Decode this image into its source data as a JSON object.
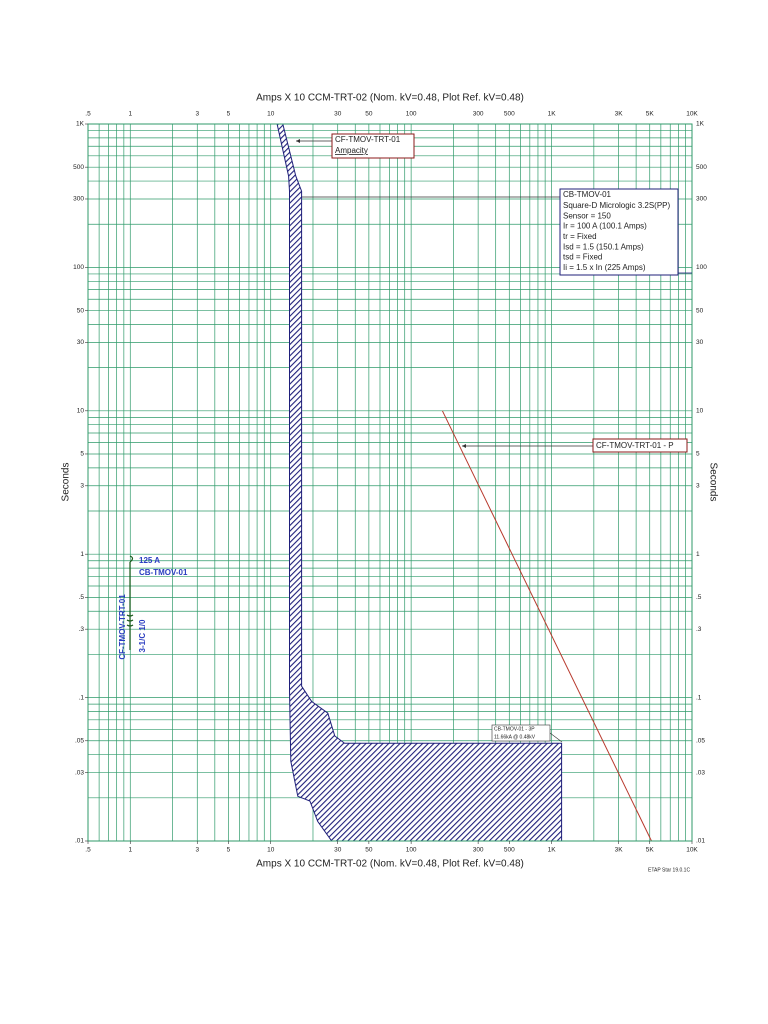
{
  "chart_data": {
    "type": "tcc",
    "title": "Amps  X 10   CCM-TRT-02 (Nom. kV=0.48, Plot Ref. kV=0.48)",
    "y_label": "Seconds",
    "footer": "ETAP Star 19.0.1C",
    "log_x": true,
    "log_y": true,
    "xlim": [
      0.5,
      10000
    ],
    "ylim": [
      0.01,
      1000
    ],
    "xticks": [
      {
        "value": 0.5,
        "label": ".5"
      },
      1,
      3,
      5,
      10,
      30,
      50,
      100,
      300,
      500,
      {
        "value": 1000,
        "label": "1K"
      },
      {
        "value": 3000,
        "label": "3K"
      },
      {
        "value": 5000,
        "label": "5K"
      },
      {
        "value": 10000,
        "label": "10K"
      }
    ],
    "yticks": [
      {
        "value": 1000,
        "label": "1K"
      },
      500,
      300,
      100,
      50,
      30,
      10,
      5,
      3,
      1,
      {
        "value": 0.5,
        "label": ".5"
      },
      {
        "value": 0.3,
        "label": ".3"
      },
      {
        "value": 0.1,
        "label": ".1"
      },
      {
        "value": 0.05,
        "label": ".05"
      },
      {
        "value": 0.03,
        "label": ".03"
      },
      {
        "value": 0.01,
        "label": ".01"
      }
    ],
    "xgrid": [
      0.5,
      0.6,
      0.7,
      0.8,
      0.9,
      1,
      2,
      3,
      4,
      5,
      6,
      7,
      8,
      9,
      10,
      20,
      30,
      40,
      50,
      60,
      70,
      80,
      90,
      100,
      200,
      300,
      400,
      500,
      600,
      700,
      800,
      900,
      1000,
      2000,
      3000,
      4000,
      5000,
      6000,
      7000,
      8000,
      9000,
      10000
    ],
    "ygrid": [
      0.01,
      0.02,
      0.03,
      0.04,
      0.05,
      0.06,
      0.07,
      0.08,
      0.09,
      0.1,
      0.2,
      0.3,
      0.4,
      0.5,
      0.6,
      0.7,
      0.8,
      0.9,
      1,
      2,
      3,
      4,
      5,
      6,
      7,
      8,
      9,
      10,
      20,
      30,
      40,
      50,
      60,
      70,
      80,
      90,
      100,
      200,
      300,
      400,
      500,
      600,
      700,
      800,
      900,
      1000
    ],
    "grid": true,
    "grid_color": "#2f9a6a",
    "series": [
      {
        "name": "CB-TMOV-01",
        "kind": "band",
        "color": "#1f1f7a",
        "x": [
          11.1,
          13.4,
          13.6,
          13.6,
          13.9,
          15.6,
          19.0,
          21.6,
          27.2,
          1178,
          1178,
          33.6,
          28.6,
          25.5,
          19.6,
          16.6,
          16.6,
          15.1,
          12.2
        ],
        "values": [
          1000,
          433,
          340,
          0.111,
          0.036,
          0.0205,
          0.019,
          0.0137,
          0.01,
          0.01,
          0.048,
          0.048,
          0.054,
          0.078,
          0.094,
          0.12,
          340,
          433,
          1000
        ]
      },
      {
        "name": "CF-TMOV-TRT-01 - P",
        "kind": "line",
        "color": "#b83a2e",
        "x": [
          167,
          5150
        ],
        "values": [
          10,
          0.01
        ]
      }
    ],
    "ampacity_box": {
      "title": "CF-TMOV-TRT-01",
      "text": "Ampacity"
    },
    "breaker_box": [
      "Square-D  Micrologic 3.2S(PP)",
      "Sensor = 150",
      "Ir = 100 A (100.1 Amps)",
      "tr = Fixed",
      "Isd = 1.5 (150.1 Amps)",
      "tsd = Fixed",
      "Ii = 1.5 x In (225 Amps)"
    ],
    "fault_box": [
      "CB-TMOV-01 - 3P",
      "11.66kA @ 0.48kV"
    ],
    "cable_symbol": {
      "rating": "125 A",
      "size": "3-1/C 1/0"
    }
  }
}
